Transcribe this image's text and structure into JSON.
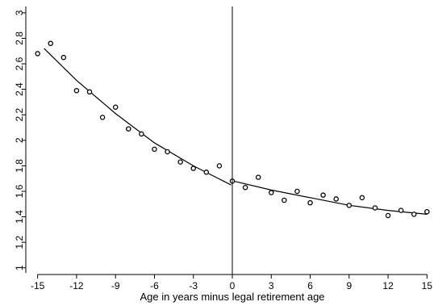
{
  "chart_data": {
    "type": "scatter",
    "title": "",
    "xlabel": "Age in years minus legal retirement age",
    "ylabel": "",
    "xlim": [
      -15.6,
      15.6
    ],
    "ylim": [
      0.96,
      3.05
    ],
    "x_ticks": [
      -15,
      -12,
      -9,
      -6,
      -3,
      0,
      3,
      6,
      9,
      12,
      15
    ],
    "x_tick_labels": [
      "-15",
      "-12",
      "-9",
      "-6",
      "-3",
      "0",
      "3",
      "6",
      "9",
      "12",
      "15"
    ],
    "y_ticks": [
      1,
      1.2,
      1.4,
      1.6,
      1.8,
      2,
      2.2,
      2.4,
      2.6,
      2.8,
      3
    ],
    "y_tick_labels": [
      "1",
      "1.2",
      "1.4",
      "1.6",
      "1.8",
      "2",
      "2.2",
      "2.4",
      "2.6",
      "2.8",
      "3"
    ],
    "grid": false,
    "vline_x": 0,
    "series": [
      {
        "kind": "points",
        "marker": "hollow-circle",
        "x": [
          -15,
          -14,
          -13,
          -12,
          -11,
          -10,
          -9,
          -8,
          -7,
          -6,
          -5,
          -4,
          -3,
          -2,
          -1,
          0,
          1,
          2,
          3,
          4,
          5,
          6,
          7,
          8,
          9,
          10,
          11,
          12,
          13,
          14,
          15
        ],
        "y": [
          2.68,
          2.76,
          2.65,
          2.39,
          2.38,
          2.18,
          2.26,
          2.09,
          2.05,
          1.93,
          1.91,
          1.83,
          1.78,
          1.75,
          1.8,
          1.68,
          1.63,
          1.71,
          1.59,
          1.53,
          1.6,
          1.51,
          1.57,
          1.54,
          1.49,
          1.55,
          1.47,
          1.41,
          1.45,
          1.42,
          1.44
        ]
      },
      {
        "kind": "line",
        "x": [
          -14.5,
          -12,
          -9,
          -6,
          -3,
          -0.1
        ],
        "y": [
          2.72,
          2.47,
          2.21,
          1.98,
          1.8,
          1.65
        ]
      },
      {
        "kind": "line",
        "x": [
          0.1,
          3,
          6,
          9,
          12,
          15
        ],
        "y": [
          1.68,
          1.61,
          1.55,
          1.49,
          1.45,
          1.42
        ]
      }
    ]
  },
  "colors": {
    "marker_stroke": "#000000",
    "line": "#000000",
    "axis": "#000000",
    "background": "#ffffff"
  }
}
